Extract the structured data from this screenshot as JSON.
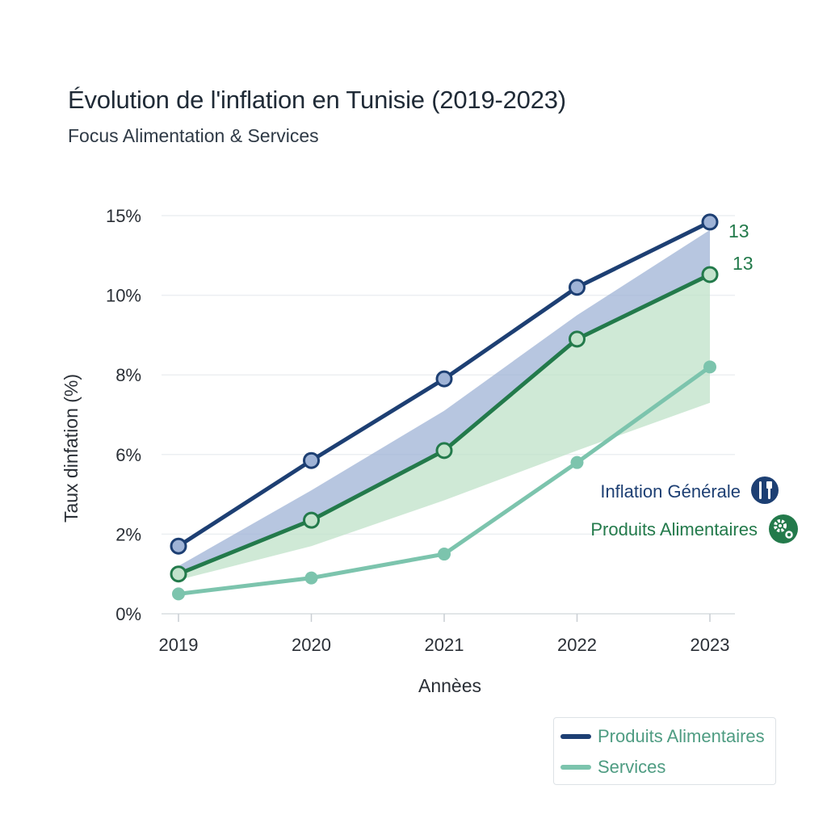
{
  "title": "Évolution de l'inflation en Tunisie (2019-2023)",
  "subtitle": "Focus Alimentation & Services",
  "chart_data": {
    "type": "line",
    "title": "Évolution de l'inflation en Tunisie (2019-2023)",
    "subtitle": "Focus Alimentation & Services",
    "xlabel": "Annèes",
    "ylabel": "Taux dinfation (%)",
    "categories": [
      "2019",
      "2020",
      "2021",
      "2022",
      "2023"
    ],
    "y_ticks": [
      0,
      2,
      6,
      8,
      10,
      15
    ],
    "y_tick_labels": [
      "0%",
      "2%",
      "6%",
      "8%",
      "10%",
      "15%"
    ],
    "ylim": [
      0,
      15
    ],
    "grid": true,
    "series": [
      {
        "name": "Inflation Générale",
        "color": "#1d3f73",
        "marker_fill": "#9fb3d6",
        "values": [
          1.7,
          5.7,
          7.9,
          10.5,
          14.6
        ]
      },
      {
        "name": "Produits Alimentaires",
        "color": "#237a4b",
        "marker_fill": "#c3e3cc",
        "values": [
          1.0,
          2.7,
          6.1,
          8.9,
          11.3
        ]
      },
      {
        "name": "Services",
        "color": "#7cc4ad",
        "marker_fill": "#7cc4ad",
        "values": [
          0.5,
          0.9,
          1.5,
          5.6,
          8.2
        ]
      }
    ],
    "bands": [
      {
        "name": "upper-band",
        "color": "#9fb3d6",
        "upper": [
          1.2,
          4.2,
          7.1,
          9.5,
          14.1
        ],
        "lower_series": "Produits Alimentaires"
      },
      {
        "name": "lower-band",
        "color": "#bfe2c8",
        "upper_series": "Produits Alimentaires",
        "lower": [
          0.85,
          1.7,
          3.7,
          6.1,
          7.3
        ]
      }
    ],
    "annotations": [
      {
        "text": "13",
        "color": "#237a4b"
      },
      {
        "text": "13",
        "color": "#237a4b"
      }
    ],
    "inline_labels": [
      {
        "text": "Inflation Générale",
        "color": "#1d3f73",
        "icon": "fork-knife-icon"
      },
      {
        "text": "Produits Alimentaires",
        "color": "#237a4b",
        "icon": "gear-icon"
      }
    ],
    "legend": {
      "position": "bottom-right",
      "entries": [
        {
          "label": "Produits Alimentaires",
          "color": "#1d3f73"
        },
        {
          "label": "Services",
          "color": "#7cc4ad"
        }
      ]
    }
  }
}
